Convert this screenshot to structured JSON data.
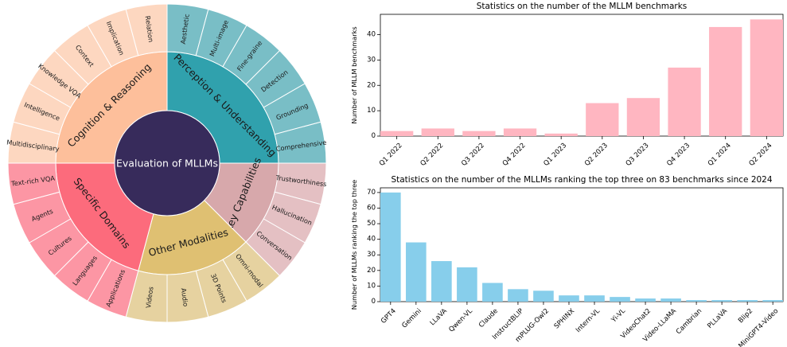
{
  "center_label": "Evaluation of MLLMs",
  "sunburst": {
    "categories": [
      {
        "name": "Perception & Understanding",
        "inner_color": "#30a1ad",
        "outer_color": "#79bec6",
        "items": [
          "Aesthetic",
          "Multi-image",
          "Fine-graine",
          "Detection",
          "Grounding",
          "Comprehensive"
        ]
      },
      {
        "name": "Key Capabilities",
        "inner_color": "#d7a8ab",
        "outer_color": "#e4c0c3",
        "items": [
          "Trustworthiness",
          "Hallucination",
          "Conversation"
        ]
      },
      {
        "name": "Other Modalities",
        "inner_color": "#dfc072",
        "outer_color": "#e6d2a0",
        "items": [
          "Omni-modal",
          "3D Points",
          "Audio",
          "Videos"
        ]
      },
      {
        "name": "Specific Domains",
        "inner_color": "#fc6b7c",
        "outer_color": "#fc96a4",
        "items": [
          "Applications",
          "Languages",
          "Cultures",
          "Agents",
          "Text-rich VQA"
        ]
      },
      {
        "name": "Cognition & Reasoning",
        "inner_color": "#fdbf9b",
        "outer_color": "#fdd7c0",
        "items": [
          "Multidisciplinary",
          "Intelligence",
          "Knowledge VQA",
          "Context",
          "Implication",
          "Relation"
        ]
      }
    ],
    "center_color": "#372b5b"
  },
  "chart_data": [
    {
      "type": "bar",
      "title": "Statistics on the number of the MLLM benchmarks",
      "ylabel": "Number of MLLM benchmarks",
      "xlabel": "",
      "categories": [
        "Q1 2022",
        "Q2 2022",
        "Q3 2022",
        "Q4 2022",
        "Q1 2023",
        "Q2 2023",
        "Q3 2023",
        "Q4 2023",
        "Q1 2024",
        "Q2 2024"
      ],
      "values": [
        2,
        3,
        2,
        3,
        1,
        13,
        15,
        27,
        43,
        46
      ],
      "ylim": [
        0,
        48
      ],
      "yticks": [
        0,
        10,
        20,
        30,
        40
      ],
      "color": "#ffb6c1"
    },
    {
      "type": "bar",
      "title": "Statistics on the number of the MLLMs ranking the top three on 83 benchmarks since 2024",
      "ylabel": "Number of MLLMs ranking the top three",
      "xlabel": "",
      "categories": [
        "GPT4",
        "Gemini",
        "LLaVA",
        "Qwen-VL",
        "Claude",
        "InstructBLIP",
        "mPLUG-Owl2",
        "SPHINX",
        "Intern-VL",
        "Yi-VL",
        "VideoChat2",
        "Video-LLaMA",
        "Cambrian",
        "PLLaVA",
        "Blip2",
        "MiniGPT4-Video"
      ],
      "values": [
        70,
        38,
        26,
        22,
        12,
        8,
        7,
        4,
        4,
        3,
        2,
        2,
        1,
        1,
        1,
        1
      ],
      "ylim": [
        0,
        73
      ],
      "yticks": [
        0,
        10,
        20,
        30,
        40,
        50,
        60,
        70
      ],
      "color": "#87ceeb"
    }
  ]
}
